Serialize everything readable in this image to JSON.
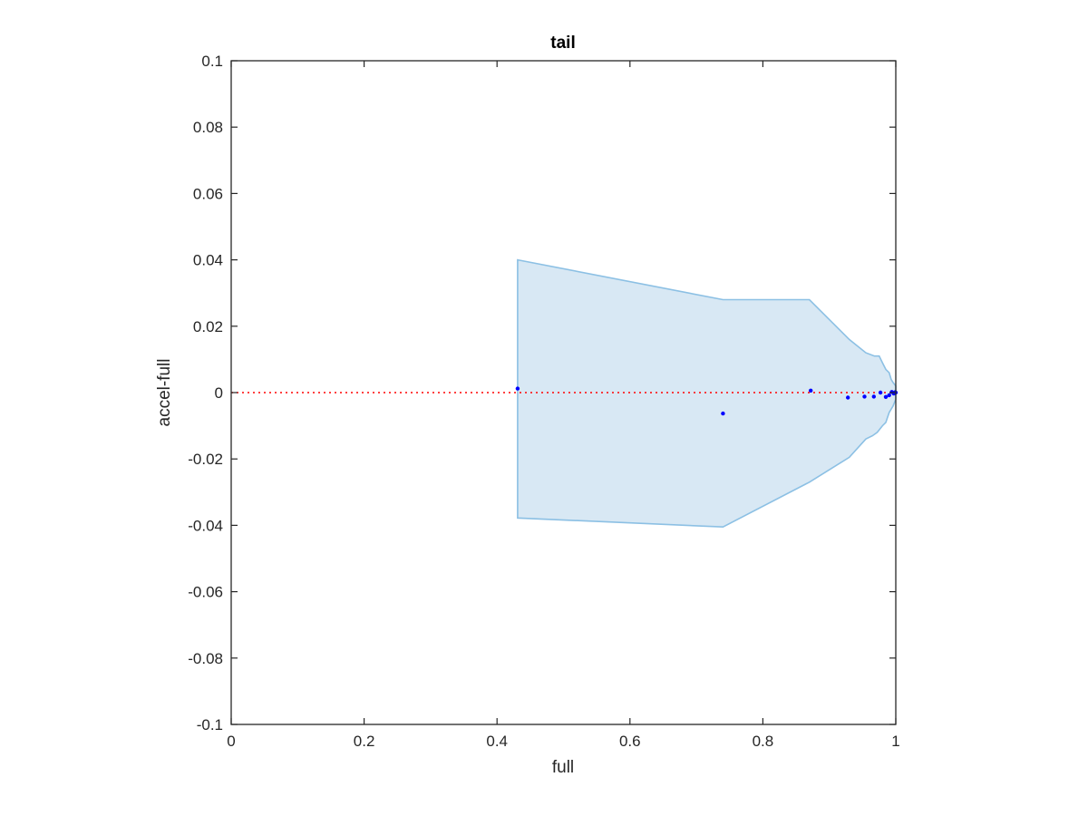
{
  "chart_data": {
    "type": "scatter",
    "title": "tail",
    "xlabel": "full",
    "ylabel": "accel-full",
    "xlim": [
      0,
      1
    ],
    "ylim": [
      -0.1,
      0.1
    ],
    "xticks": [
      0,
      0.2,
      0.4,
      0.6,
      0.8,
      1
    ],
    "xtick_labels": [
      "0",
      "0.2",
      "0.4",
      "0.6",
      "0.8",
      "1"
    ],
    "yticks": [
      -0.1,
      -0.08,
      -0.06,
      -0.04,
      -0.02,
      0,
      0.02,
      0.04,
      0.06,
      0.08,
      0.1
    ],
    "ytick_labels": [
      "-0.1",
      "-0.08",
      "-0.06",
      "-0.04",
      "-0.02",
      "0",
      "0.02",
      "0.04",
      "0.06",
      "0.08",
      "0.1"
    ],
    "grid": false,
    "reference_line": {
      "y": 0,
      "style": "dotted",
      "color": "#ff0000"
    },
    "band": {
      "fill_color": "#d8e8f4",
      "edge_color": "#8cc0e4",
      "upper": [
        [
          0.431,
          0.04
        ],
        [
          0.74,
          0.028
        ],
        [
          0.87,
          0.028
        ],
        [
          0.93,
          0.016
        ],
        [
          0.955,
          0.012
        ],
        [
          0.968,
          0.011
        ],
        [
          0.975,
          0.011
        ],
        [
          0.98,
          0.009
        ],
        [
          0.985,
          0.007
        ],
        [
          0.99,
          0.006
        ],
        [
          0.993,
          0.004
        ],
        [
          0.996,
          0.003
        ],
        [
          1.0,
          0.002
        ]
      ],
      "lower": [
        [
          1.0,
          -0.002
        ],
        [
          0.996,
          -0.004
        ],
        [
          0.99,
          -0.006
        ],
        [
          0.985,
          -0.009
        ],
        [
          0.98,
          -0.01
        ],
        [
          0.972,
          -0.012
        ],
        [
          0.965,
          -0.013
        ],
        [
          0.955,
          -0.014
        ],
        [
          0.93,
          -0.0195
        ],
        [
          0.87,
          -0.027
        ],
        [
          0.74,
          -0.0405
        ],
        [
          0.431,
          -0.0378
        ]
      ]
    },
    "series": [
      {
        "color": "#0000ff",
        "x": [
          0.431,
          0.74,
          0.872,
          0.928,
          0.953,
          0.967,
          0.977,
          0.985,
          0.99,
          0.994,
          0.997,
          0.999,
          1.0
        ],
        "y": [
          0.0012,
          -0.0063,
          0.0006,
          -0.0015,
          -0.0012,
          -0.0012,
          0.0,
          -0.0013,
          -0.0008,
          0.0002,
          -0.0003,
          0.0001,
          0.0
        ]
      }
    ]
  }
}
